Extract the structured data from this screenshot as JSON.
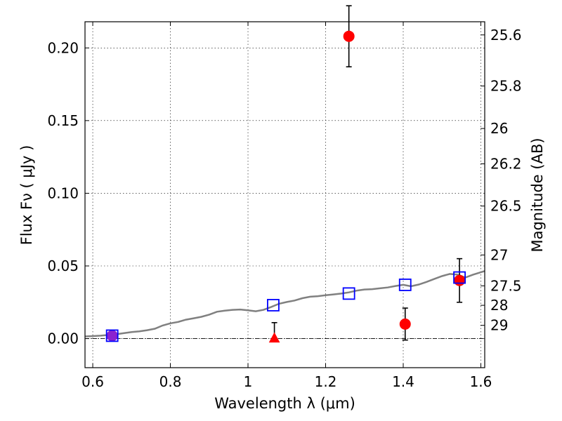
{
  "chart_data": {
    "type": "scatter",
    "xlabel": "Wavelength  λ (μm)",
    "ylabel": "Flux  Fν  ( μJy )",
    "y2label": "Magnitude (AB)",
    "xlim": [
      0.58,
      1.61
    ],
    "ylim": [
      -0.02,
      0.218
    ],
    "grid": true,
    "xticks": [
      {
        "value": 0.6,
        "label": "0.6"
      },
      {
        "value": 0.8,
        "label": "0.8"
      },
      {
        "value": 1.0,
        "label": "1"
      },
      {
        "value": 1.2,
        "label": "1.2"
      },
      {
        "value": 1.4,
        "label": "1.4"
      },
      {
        "value": 1.6,
        "label": "1.6"
      }
    ],
    "yticks": [
      {
        "value": 0.0,
        "label": "0.00"
      },
      {
        "value": 0.05,
        "label": "0.05"
      },
      {
        "value": 0.1,
        "label": "0.10"
      },
      {
        "value": 0.15,
        "label": "0.15"
      },
      {
        "value": 0.2,
        "label": "0.20"
      }
    ],
    "y2ticks": [
      {
        "mag": 25.6,
        "label": "25.6"
      },
      {
        "mag": 25.8,
        "label": "25.8"
      },
      {
        "mag": 26.0,
        "label": "26"
      },
      {
        "mag": 26.2,
        "label": "26.2"
      },
      {
        "mag": 26.5,
        "label": "26.5"
      },
      {
        "mag": 27.0,
        "label": "27"
      },
      {
        "mag": 27.5,
        "label": "27.5"
      },
      {
        "mag": 28.0,
        "label": "28"
      },
      {
        "mag": 29.0,
        "label": "29"
      }
    ],
    "series": [
      {
        "kind": "model_spectrum",
        "color": "#808080",
        "points": [
          [
            0.58,
            0.0015
          ],
          [
            0.62,
            0.002
          ],
          [
            0.66,
            0.003
          ],
          [
            0.7,
            0.0045
          ],
          [
            0.72,
            0.005
          ],
          [
            0.74,
            0.0058
          ],
          [
            0.76,
            0.0068
          ],
          [
            0.78,
            0.009
          ],
          [
            0.8,
            0.0105
          ],
          [
            0.82,
            0.0115
          ],
          [
            0.84,
            0.013
          ],
          [
            0.86,
            0.014
          ],
          [
            0.88,
            0.015
          ],
          [
            0.9,
            0.0165
          ],
          [
            0.92,
            0.0185
          ],
          [
            0.94,
            0.0192
          ],
          [
            0.96,
            0.0198
          ],
          [
            0.98,
            0.02
          ],
          [
            1.0,
            0.0195
          ],
          [
            1.02,
            0.0188
          ],
          [
            1.04,
            0.0198
          ],
          [
            1.06,
            0.0218
          ],
          [
            1.08,
            0.024
          ],
          [
            1.1,
            0.0252
          ],
          [
            1.12,
            0.0262
          ],
          [
            1.14,
            0.0278
          ],
          [
            1.16,
            0.0288
          ],
          [
            1.18,
            0.0292
          ],
          [
            1.2,
            0.0298
          ],
          [
            1.22,
            0.0304
          ],
          [
            1.24,
            0.031
          ],
          [
            1.26,
            0.0318
          ],
          [
            1.28,
            0.033
          ],
          [
            1.3,
            0.0338
          ],
          [
            1.32,
            0.034
          ],
          [
            1.34,
            0.0346
          ],
          [
            1.36,
            0.0352
          ],
          [
            1.38,
            0.0362
          ],
          [
            1.4,
            0.037
          ],
          [
            1.42,
            0.036
          ],
          [
            1.44,
            0.0372
          ],
          [
            1.46,
            0.039
          ],
          [
            1.48,
            0.041
          ],
          [
            1.5,
            0.043
          ],
          [
            1.52,
            0.0445
          ],
          [
            1.54,
            0.044
          ],
          [
            1.56,
            0.042
          ],
          [
            1.58,
            0.044
          ],
          [
            1.61,
            0.0465
          ]
        ]
      },
      {
        "kind": "model_photometry",
        "marker": "open-square",
        "color": "#0000ff",
        "x": [
          0.65,
          1.065,
          1.26,
          1.405,
          1.545
        ],
        "y": [
          0.002,
          0.023,
          0.031,
          0.037,
          0.042
        ]
      },
      {
        "kind": "observed",
        "marker": "filled-circle",
        "color": "#ff0000",
        "points": [
          {
            "x": 0.65,
            "y": 0.002,
            "err": 0.003,
            "fill": "#8b22cf"
          },
          {
            "x": 1.26,
            "y": 0.208,
            "err": 0.021,
            "fill": "#ff0000"
          },
          {
            "x": 1.405,
            "y": 0.01,
            "err": 0.011,
            "fill": "#ff0000"
          },
          {
            "x": 1.545,
            "y": 0.04,
            "err": 0.015,
            "fill": "#ff0000"
          }
        ]
      },
      {
        "kind": "upper_limit",
        "marker": "filled-triangle",
        "color": "#ff0000",
        "points": [
          {
            "x": 1.068,
            "y": 0.0,
            "err_up": 0.011
          }
        ]
      }
    ]
  }
}
